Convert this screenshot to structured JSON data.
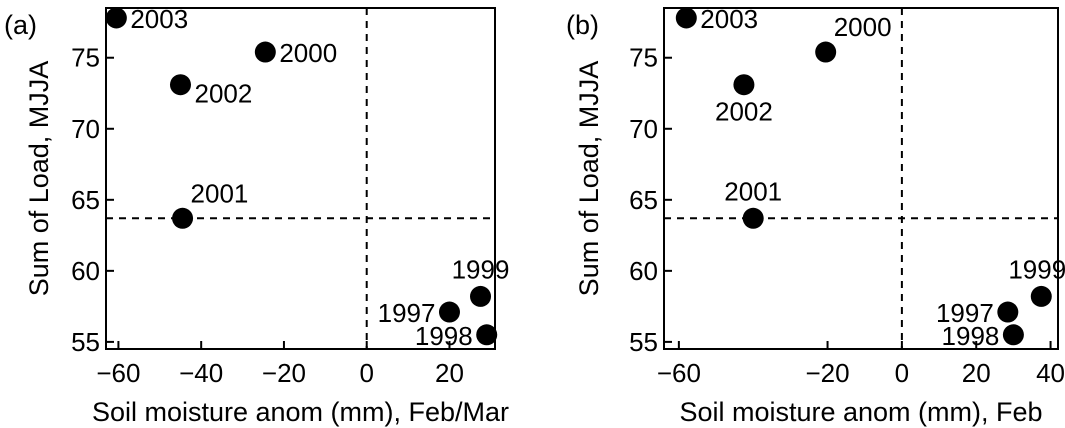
{
  "chart_data": [
    {
      "type": "scatter",
      "panel_label": "(a)",
      "xlabel": "Soil moisture anom (mm), Feb/Mar",
      "ylabel": "Sum of Load, MJJA",
      "xlim": [
        -63,
        31
      ],
      "ylim": [
        54.5,
        78.5
      ],
      "xticks": [
        -60,
        -40,
        -20,
        0,
        20
      ],
      "xtick_labels": [
        "−60",
        "−40",
        "−20",
        "0",
        "20"
      ],
      "yticks": [
        55,
        60,
        65,
        70,
        75
      ],
      "ytick_labels": [
        "55",
        "60",
        "65",
        "70",
        "75"
      ],
      "reference_lines": {
        "x": 0,
        "y": 63.7
      },
      "grid": false,
      "points": [
        {
          "label": "2003",
          "x": -60.5,
          "y": 77.8,
          "label_pos": "right"
        },
        {
          "label": "2000",
          "x": -24.5,
          "y": 75.4,
          "label_pos": "right"
        },
        {
          "label": "2002",
          "x": -45.0,
          "y": 73.1,
          "label_pos": "right-below"
        },
        {
          "label": "2001",
          "x": -44.5,
          "y": 63.7,
          "label_pos": "above-right"
        },
        {
          "label": "1999",
          "x": 27.5,
          "y": 58.2,
          "label_pos": "above"
        },
        {
          "label": "1997",
          "x": 20.0,
          "y": 57.1,
          "label_pos": "left"
        },
        {
          "label": "1998",
          "x": 29.0,
          "y": 55.5,
          "label_pos": "left"
        }
      ]
    },
    {
      "type": "scatter",
      "panel_label": "(b)",
      "xlabel": "Soil moisture anom (mm), Feb",
      "ylabel": "Sum of Load, MJJA",
      "xlim": [
        -64,
        42
      ],
      "ylim": [
        54.5,
        78.5
      ],
      "xticks": [
        -60,
        -20,
        0,
        20,
        40
      ],
      "xtick_labels": [
        "−60",
        "−20",
        "0",
        "20",
        "40"
      ],
      "yticks": [
        55,
        60,
        65,
        70,
        75
      ],
      "ytick_labels": [
        "55",
        "60",
        "65",
        "70",
        "75"
      ],
      "reference_lines": {
        "x": 0,
        "y": 63.7
      },
      "grid": false,
      "points": [
        {
          "label": "2003",
          "x": -58.0,
          "y": 77.8,
          "label_pos": "right"
        },
        {
          "label": "2000",
          "x": -20.5,
          "y": 75.4,
          "label_pos": "above-right"
        },
        {
          "label": "2002",
          "x": -42.5,
          "y": 73.1,
          "label_pos": "below"
        },
        {
          "label": "2001",
          "x": -40.0,
          "y": 63.7,
          "label_pos": "above"
        },
        {
          "label": "1999",
          "x": 37.5,
          "y": 58.2,
          "label_pos": "above-left"
        },
        {
          "label": "1997",
          "x": 28.5,
          "y": 57.1,
          "label_pos": "left"
        },
        {
          "label": "1998",
          "x": 30.0,
          "y": 55.5,
          "label_pos": "left"
        }
      ]
    }
  ]
}
